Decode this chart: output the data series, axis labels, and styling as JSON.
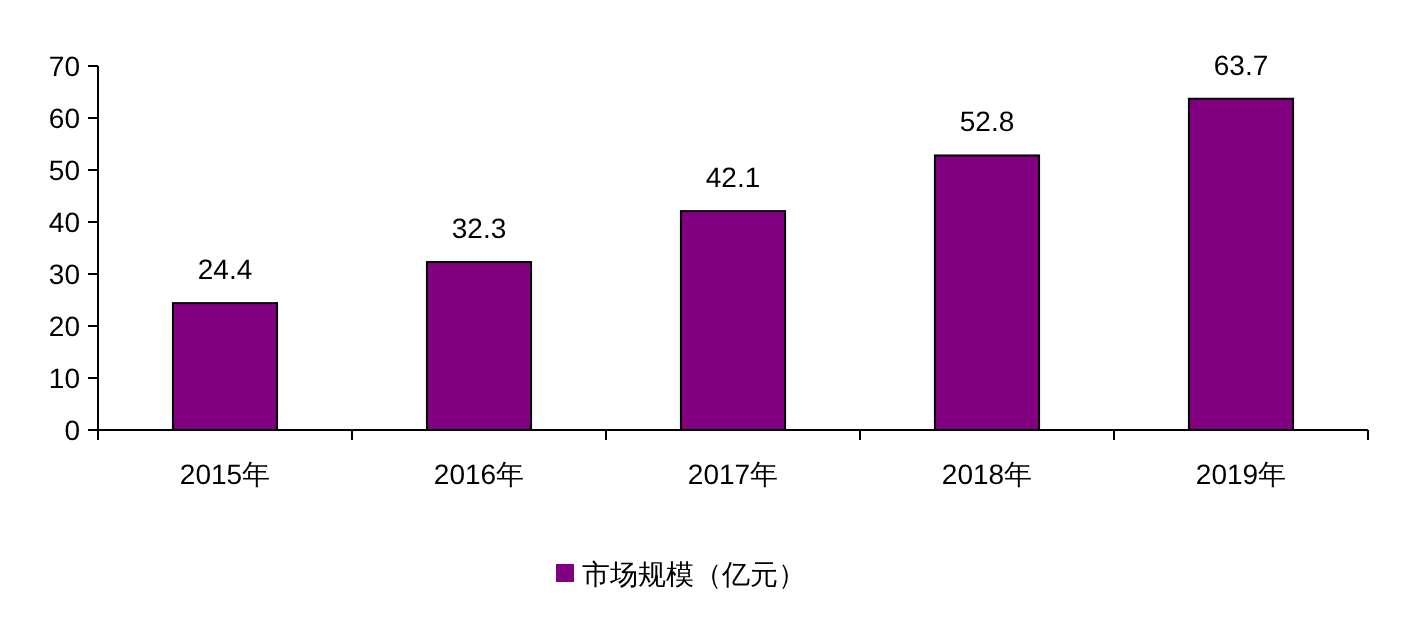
{
  "chart_data": {
    "type": "bar",
    "categories": [
      "2015年",
      "2016年",
      "2017年",
      "2018年",
      "2019年"
    ],
    "series": [
      {
        "name": "市场规模（亿元）",
        "color": "#800080",
        "values": [
          24.4,
          32.3,
          42.1,
          52.8,
          63.7
        ]
      }
    ],
    "ylim": [
      0,
      70
    ],
    "yticks": [
      0,
      10,
      20,
      30,
      40,
      50,
      60,
      70
    ],
    "data_labels": true,
    "legend": "bottom",
    "grid": false
  }
}
